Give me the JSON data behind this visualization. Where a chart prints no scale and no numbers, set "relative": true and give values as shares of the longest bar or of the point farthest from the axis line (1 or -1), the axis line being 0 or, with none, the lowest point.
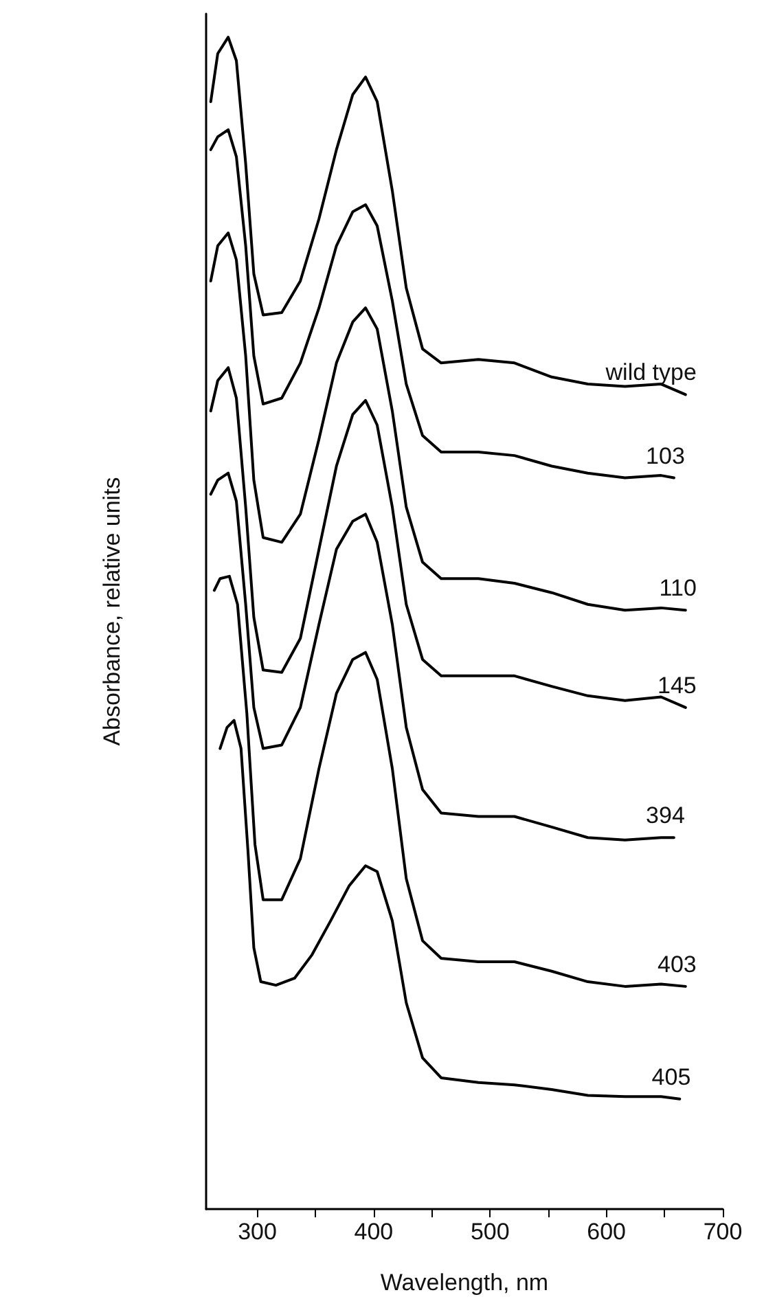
{
  "chart_data": {
    "type": "line",
    "relative": true,
    "xlabel": "Wavelength, nm",
    "ylabel": "Absorbance, relative units",
    "xlim": [
      256,
      700
    ],
    "xticks": [
      300,
      {
        "value": 350,
        "label": null
      },
      400,
      {
        "value": 450,
        "label": null
      },
      500,
      {
        "value": 550,
        "label": null
      },
      600,
      {
        "value": 650,
        "label": null
      },
      700
    ],
    "grid": false,
    "legend": false,
    "marker": "none",
    "line_style": "solid",
    "series": [
      {
        "name": "wild type",
        "color": "#000000",
        "x": [
          260,
          266,
          275,
          282,
          290,
          297,
          305,
          321,
          337,
          353,
          368,
          382,
          393,
          403,
          416,
          428,
          442,
          458,
          490,
          521,
          553,
          584,
          616,
          647,
          668
        ],
        "values": [
          0.945,
          0.986,
          1,
          0.98,
          0.892,
          0.798,
          0.763,
          0.765,
          0.792,
          0.845,
          0.904,
          0.951,
          0.966,
          0.945,
          0.869,
          0.786,
          0.734,
          0.722,
          0.725,
          0.722,
          0.71,
          0.704,
          0.702,
          0.704,
          0.695
        ]
      },
      {
        "name": "103",
        "color": "#000000",
        "x": [
          260,
          266,
          275,
          282,
          290,
          297,
          305,
          321,
          337,
          353,
          368,
          382,
          393,
          403,
          416,
          428,
          442,
          458,
          490,
          521,
          553,
          584,
          616,
          647,
          658
        ],
        "values": [
          0.904,
          0.915,
          0.921,
          0.898,
          0.822,
          0.728,
          0.687,
          0.692,
          0.722,
          0.769,
          0.822,
          0.851,
          0.857,
          0.839,
          0.775,
          0.704,
          0.66,
          0.646,
          0.646,
          0.643,
          0.634,
          0.628,
          0.624,
          0.626,
          0.624
        ]
      },
      {
        "name": "110",
        "color": "#000000",
        "x": [
          260,
          266,
          275,
          282,
          290,
          297,
          305,
          321,
          337,
          353,
          368,
          382,
          393,
          403,
          416,
          428,
          442,
          458,
          490,
          521,
          553,
          584,
          616,
          647,
          668
        ],
        "values": [
          0.792,
          0.822,
          0.833,
          0.81,
          0.728,
          0.622,
          0.573,
          0.569,
          0.593,
          0.657,
          0.722,
          0.757,
          0.769,
          0.751,
          0.681,
          0.599,
          0.552,
          0.538,
          0.538,
          0.534,
          0.526,
          0.516,
          0.511,
          0.513,
          0.511
        ]
      },
      {
        "name": "145",
        "color": "#000000",
        "x": [
          260,
          266,
          275,
          282,
          290,
          297,
          305,
          321,
          337,
          353,
          368,
          382,
          393,
          403,
          416,
          428,
          442,
          458,
          490,
          521,
          553,
          584,
          616,
          647,
          668
        ],
        "values": [
          0.681,
          0.707,
          0.718,
          0.692,
          0.599,
          0.505,
          0.46,
          0.458,
          0.487,
          0.563,
          0.634,
          0.678,
          0.69,
          0.669,
          0.599,
          0.516,
          0.469,
          0.455,
          0.455,
          0.455,
          0.446,
          0.438,
          0.434,
          0.437,
          0.428
        ]
      },
      {
        "name": "394",
        "color": "#000000",
        "x": [
          260,
          266,
          275,
          282,
          290,
          297,
          305,
          321,
          337,
          353,
          368,
          382,
          393,
          403,
          416,
          428,
          442,
          458,
          490,
          521,
          553,
          584,
          616,
          647,
          658
        ],
        "values": [
          0.61,
          0.622,
          0.628,
          0.604,
          0.516,
          0.428,
          0.393,
          0.396,
          0.428,
          0.499,
          0.563,
          0.587,
          0.593,
          0.569,
          0.499,
          0.411,
          0.358,
          0.338,
          0.335,
          0.335,
          0.326,
          0.317,
          0.315,
          0.317,
          0.317
        ]
      },
      {
        "name": "403",
        "color": "#000000",
        "x": [
          263,
          268,
          276,
          283,
          291,
          298,
          305,
          321,
          337,
          353,
          368,
          382,
          393,
          403,
          416,
          428,
          442,
          458,
          490,
          521,
          553,
          584,
          616,
          647,
          668
        ],
        "values": [
          0.528,
          0.538,
          0.54,
          0.516,
          0.423,
          0.311,
          0.264,
          0.264,
          0.299,
          0.376,
          0.44,
          0.469,
          0.475,
          0.452,
          0.376,
          0.282,
          0.229,
          0.214,
          0.211,
          0.211,
          0.203,
          0.194,
          0.19,
          0.192,
          0.19
        ]
      },
      {
        "name": "405",
        "color": "#000000",
        "x": [
          268,
          274,
          280,
          286,
          292,
          297,
          303,
          316,
          332,
          347,
          363,
          379,
          393,
          403,
          416,
          428,
          442,
          458,
          490,
          521,
          553,
          584,
          616,
          647,
          663
        ],
        "values": [
          0.393,
          0.411,
          0.417,
          0.393,
          0.305,
          0.223,
          0.194,
          0.191,
          0.197,
          0.217,
          0.246,
          0.276,
          0.293,
          0.288,
          0.246,
          0.176,
          0.129,
          0.112,
          0.108,
          0.106,
          0.102,
          0.097,
          0.096,
          0.096,
          0.094
        ]
      }
    ]
  }
}
